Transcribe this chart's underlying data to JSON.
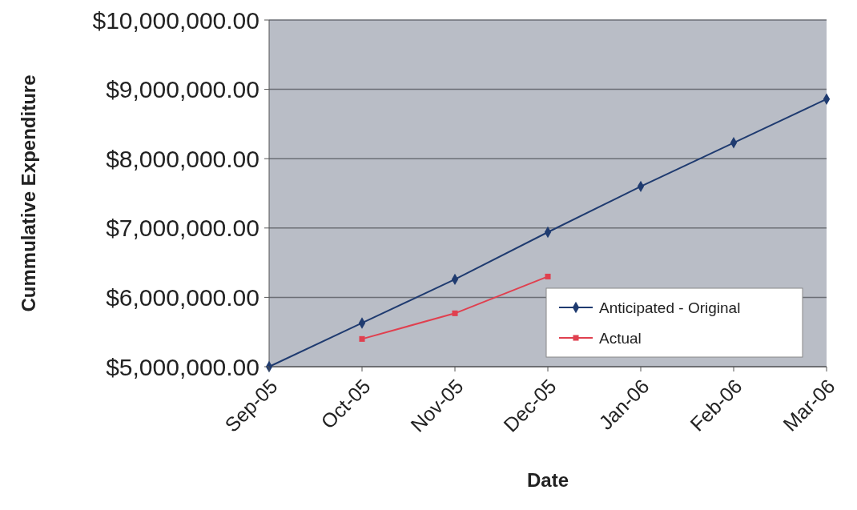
{
  "chart_data": {
    "type": "line",
    "xlabel": "Date",
    "ylabel": "Cummulative Expenditure",
    "categories": [
      "Sep-05",
      "Oct-05",
      "Nov-05",
      "Dec-05",
      "Jan-06",
      "Feb-06",
      "Mar-06"
    ],
    "series": [
      {
        "name": "Anticipated - Original",
        "color": "#1f3b70",
        "marker": "diamond",
        "values": [
          5000000,
          5630000,
          6260000,
          6940000,
          7600000,
          8230000,
          8860000
        ]
      },
      {
        "name": "Actual",
        "color": "#e0404f",
        "marker": "square",
        "values": [
          null,
          5400000,
          5770000,
          6300000,
          null,
          null,
          null
        ]
      }
    ],
    "ylim": [
      5000000,
      10000000
    ],
    "yticks": [
      {
        "value": 5000000,
        "label": "$5,000,000.00"
      },
      {
        "value": 6000000,
        "label": "$6,000,000.00"
      },
      {
        "value": 7000000,
        "label": "$7,000,000.00"
      },
      {
        "value": 8000000,
        "label": "$8,000,000.00"
      },
      {
        "value": 9000000,
        "label": "$9,000,000.00"
      },
      {
        "value": 10000000,
        "label": "$10,000,000.00"
      }
    ],
    "grid": "y",
    "legend": "bottom right",
    "line_style": "solid"
  }
}
